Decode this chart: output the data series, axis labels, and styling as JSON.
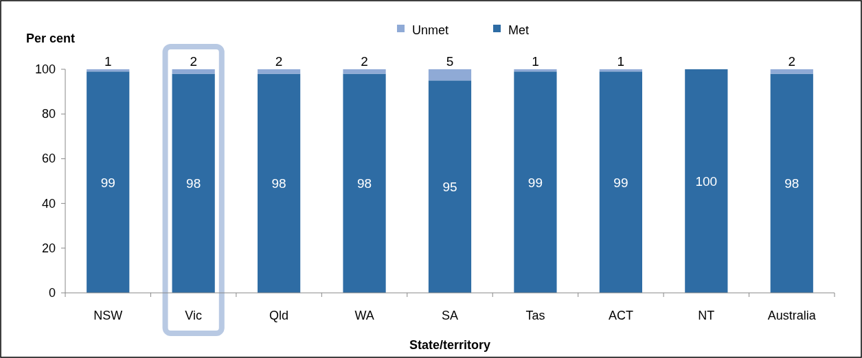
{
  "chart_data": {
    "type": "bar",
    "stacked": true,
    "xlabel": "State/territory",
    "ylabel": "Per cent",
    "categories": [
      "NSW",
      "Vic",
      "Qld",
      "WA",
      "SA",
      "Tas",
      "ACT",
      "NT",
      "Australia"
    ],
    "series": [
      {
        "name": "Met",
        "color": "#2e6ca4",
        "values": [
          99,
          98,
          98,
          98,
          95,
          99,
          99,
          100,
          98
        ],
        "value_labels": [
          "99",
          "98",
          "98",
          "98",
          "95",
          "99",
          "99",
          "100",
          "98"
        ]
      },
      {
        "name": "Unmet",
        "color": "#8faad6",
        "values": [
          1,
          2,
          2,
          2,
          5,
          1,
          1,
          0,
          2
        ],
        "value_labels": [
          "1",
          "2",
          "2",
          "2",
          "5",
          "1",
          "1",
          null,
          "2"
        ]
      }
    ],
    "ylim": [
      0,
      100
    ],
    "yticks": [
      0,
      20,
      40,
      60,
      80,
      100
    ],
    "legend": "top",
    "grid": false
  }
}
